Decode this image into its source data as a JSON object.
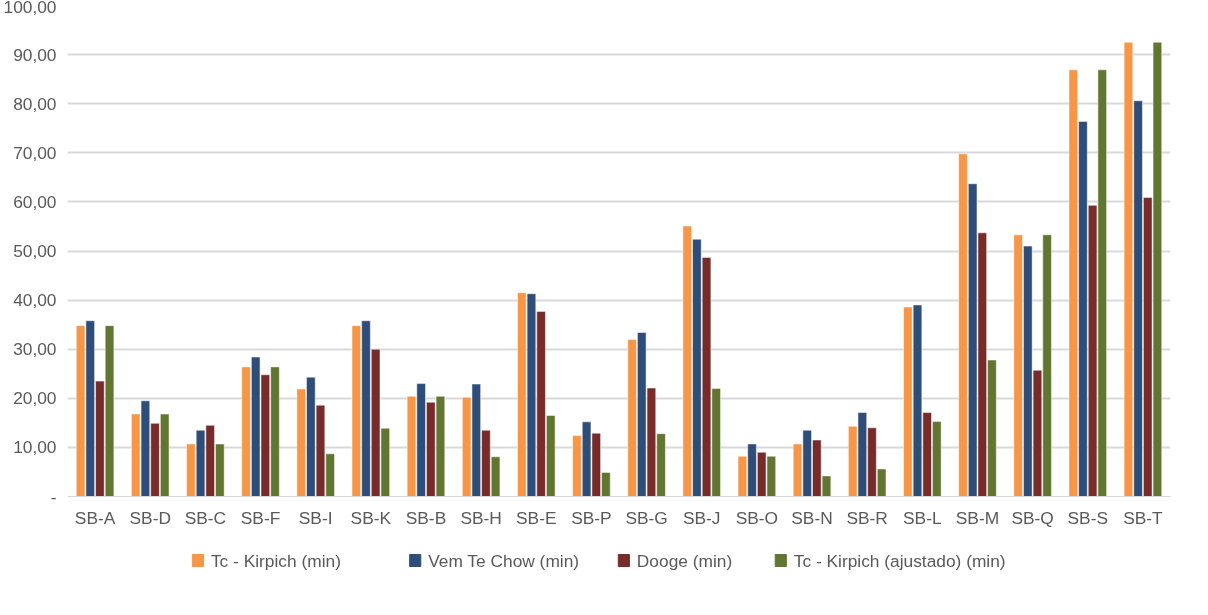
{
  "chart_data": {
    "type": "bar",
    "categories": [
      "SB-A",
      "SB-D",
      "SB-C",
      "SB-F",
      "SB-I",
      "SB-K",
      "SB-B",
      "SB-H",
      "SB-E",
      "SB-P",
      "SB-G",
      "SB-J",
      "SB-O",
      "SB-N",
      "SB-R",
      "SB-L",
      "SB-M",
      "SB-Q",
      "SB-S",
      "SB-T"
    ],
    "series": [
      {
        "name": "Tc - Kirpich (min)",
        "color": "#f79646",
        "values": [
          34.8,
          16.8,
          10.7,
          26.4,
          21.9,
          34.8,
          20.4,
          20.2,
          41.5,
          12.4,
          32.0,
          55.1,
          8.2,
          10.7,
          14.3,
          38.6,
          69.8,
          53.3,
          86.9,
          92.5
        ]
      },
      {
        "name": "Vem Te Chow (min)",
        "color": "#2e4d78",
        "values": [
          35.8,
          19.5,
          13.5,
          28.4,
          24.3,
          35.8,
          23.0,
          22.9,
          41.3,
          15.2,
          33.4,
          52.4,
          10.7,
          13.5,
          17.1,
          39.0,
          63.7,
          51.0,
          76.4,
          80.6
        ]
      },
      {
        "name": "Dooge (min)",
        "color": "#772c2a",
        "values": [
          23.5,
          14.9,
          14.5,
          24.8,
          18.6,
          30.0,
          19.2,
          13.5,
          37.7,
          12.9,
          22.1,
          48.7,
          9.0,
          11.5,
          14.0,
          17.1,
          53.7,
          25.7,
          59.3,
          60.9
        ]
      },
      {
        "name": "Tc - Kirpich (ajustado) (min)",
        "color": "#617631",
        "values": [
          34.8,
          16.8,
          10.7,
          26.4,
          8.7,
          13.9,
          20.4,
          8.1,
          16.5,
          4.9,
          12.8,
          22.0,
          8.2,
          4.2,
          5.6,
          15.3,
          27.8,
          53.3,
          86.9,
          92.5
        ]
      }
    ],
    "ylim": [
      0,
      100
    ],
    "yticks": [
      {
        "value": 0,
        "label": "-"
      },
      {
        "value": 10,
        "label": "10,00"
      },
      {
        "value": 20,
        "label": "20,00"
      },
      {
        "value": 30,
        "label": "30,00"
      },
      {
        "value": 40,
        "label": "40,00"
      },
      {
        "value": 50,
        "label": "50,00"
      },
      {
        "value": 60,
        "label": "60,00"
      },
      {
        "value": 70,
        "label": "70,00"
      },
      {
        "value": 80,
        "label": "80,00"
      },
      {
        "value": 90,
        "label": "90,00"
      },
      {
        "value": 100,
        "label": "100,00"
      }
    ],
    "grid": "y",
    "legend": "bottom"
  }
}
